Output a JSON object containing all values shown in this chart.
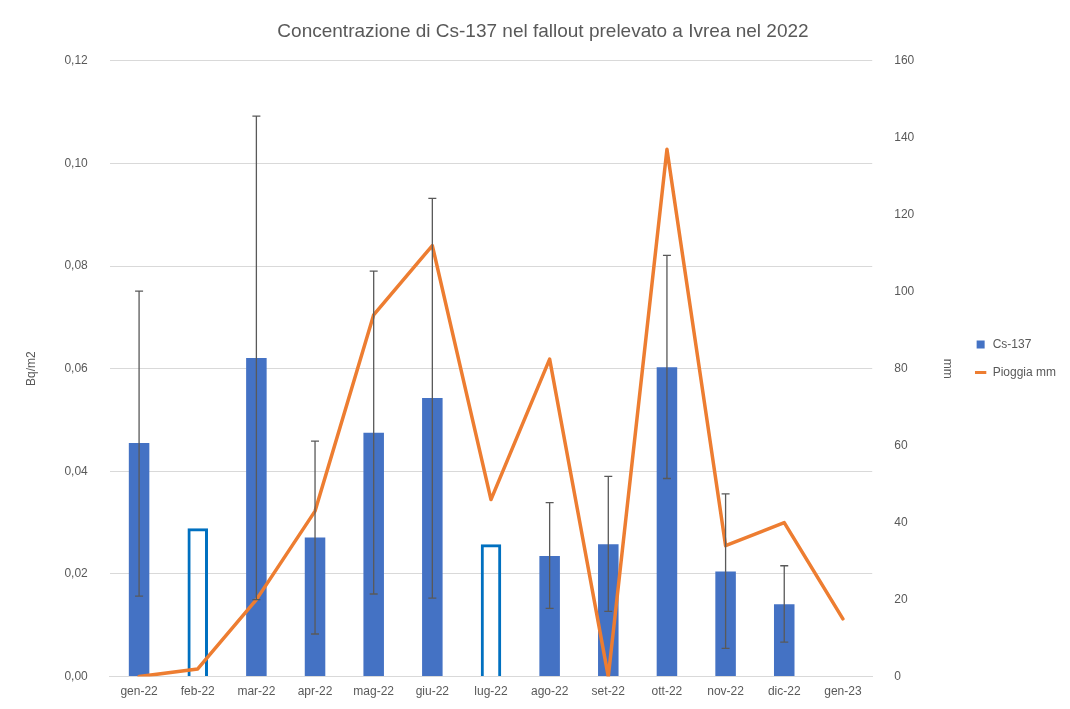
{
  "chart_data": {
    "type": "bar",
    "title": "Concentrazione di Cs-137 nel fallout prelevato a Ivrea nel 2022",
    "ylabel": "Bq/m2",
    "y2label": "mm",
    "categories": [
      "gen-22",
      "feb-22",
      "mar-22",
      "apr-22",
      "mag-22",
      "giu-22",
      "lug-22",
      "ago-22",
      "set-22",
      "ott-22",
      "nov-22",
      "dic-22",
      "gen-23"
    ],
    "series": [
      {
        "name": "Cs-137",
        "color": "#4472c4",
        "colors": [
          "#4472c4",
          "#0070c0",
          "#4472c4",
          "#4472c4",
          "#4472c4",
          "#4472c4",
          "#0070c0",
          "#4472c4",
          "#4472c4",
          "#4472c4",
          "#4472c4",
          "#4472c4",
          "#4472c4"
        ],
        "values": [
          0.0455,
          0.0289,
          0.0621,
          0.0271,
          0.0475,
          0.0543,
          0.0258,
          0.0235,
          0.0258,
          0.0603,
          0.0205,
          0.0141,
          null
        ],
        "errors": [
          [
            0.0157,
            0.0751
          ],
          null,
          [
            0.015,
            0.1092
          ],
          [
            0.0083,
            0.0459
          ],
          [
            0.0161,
            0.079
          ],
          [
            0.0153,
            0.0932
          ],
          null,
          [
            0.0133,
            0.0339
          ],
          [
            0.0127,
            0.039
          ],
          [
            0.0386,
            0.0821
          ],
          [
            0.0055,
            0.0356
          ],
          [
            0.0067,
            0.0216
          ],
          null
        ]
      },
      {
        "name": "Pioggia mm",
        "type": "line",
        "axis": "y2",
        "color": "#ed7d31",
        "values": [
          0,
          2,
          20,
          43,
          94,
          112,
          46,
          82.5,
          0,
          137,
          34,
          40,
          15
        ]
      }
    ],
    "ylim": [
      0,
      0.12
    ],
    "yticks": [
      {
        "value": 0,
        "label": "0,00"
      },
      {
        "value": 0.02,
        "label": "0,02"
      },
      {
        "value": 0.04,
        "label": "0,04"
      },
      {
        "value": 0.06,
        "label": "0,06"
      },
      {
        "value": 0.08,
        "label": "0,08"
      },
      {
        "value": 0.1,
        "label": "0,10"
      },
      {
        "value": 0.12,
        "label": "0,12"
      }
    ],
    "y2lim": [
      0,
      160
    ],
    "y2ticks": [
      0,
      20,
      40,
      60,
      80,
      100,
      120,
      140,
      160
    ],
    "grid": "y",
    "legend": "right",
    "marker": "none",
    "line_style": "solid"
  }
}
